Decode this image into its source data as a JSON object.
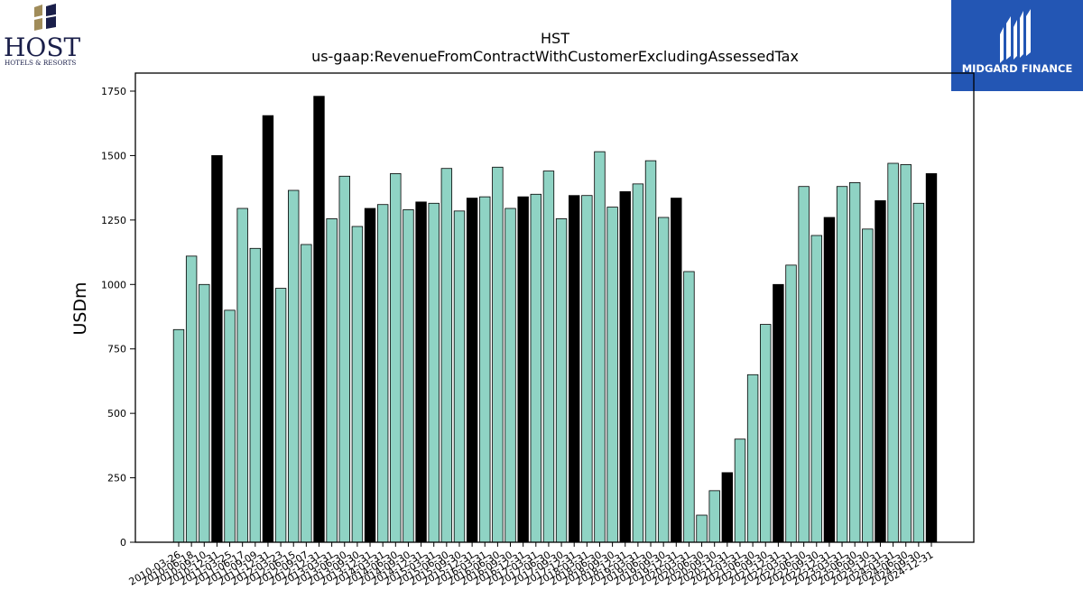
{
  "brand": {
    "host_name": "HOST",
    "host_sub": "HOTELS & RESORTS",
    "midgard_name": "MIDGARD FINANCE",
    "midgard_color": "#2356b4",
    "host_gold": "#a08c5a",
    "host_navy": "#1a1f4a"
  },
  "chart_data": {
    "type": "bar",
    "title": "HST",
    "subtitle": "us-gaap:RevenueFromContractWithCustomerExcludingAssessedTax",
    "ylabel": "USDm",
    "xlabel": "",
    "ylim": [
      0,
      1820
    ],
    "yticks": [
      0,
      250,
      500,
      750,
      1000,
      1250,
      1500,
      1750
    ],
    "grid": false,
    "colors": {
      "quarter": "#8fd3c4",
      "annual": "#000000",
      "edge": "#000000"
    },
    "categories": [
      "2010-03-26",
      "2010-06-18",
      "2010-09-10",
      "2010-12-31",
      "2011-03-25",
      "2011-06-17",
      "2011-09-09",
      "2011-12-31",
      "2012-03-23",
      "2012-06-15",
      "2012-09-07",
      "2012-12-31",
      "2013-03-31",
      "2013-06-30",
      "2013-09-30",
      "2013-12-31",
      "2014-03-31",
      "2014-06-30",
      "2014-09-30",
      "2014-12-31",
      "2015-03-31",
      "2015-06-30",
      "2015-09-30",
      "2015-12-31",
      "2016-03-31",
      "2016-06-30",
      "2016-09-30",
      "2016-12-31",
      "2017-03-31",
      "2017-06-30",
      "2017-09-30",
      "2017-12-31",
      "2018-03-31",
      "2018-06-30",
      "2018-09-30",
      "2018-12-31",
      "2019-03-31",
      "2019-06-30",
      "2019-09-30",
      "2019-12-31",
      "2020-03-31",
      "2020-06-30",
      "2020-09-30",
      "2020-12-31",
      "2021-03-31",
      "2021-06-30",
      "2021-09-30",
      "2021-12-31",
      "2022-03-31",
      "2022-06-30",
      "2022-09-30",
      "2022-12-31",
      "2023-03-31",
      "2023-06-30",
      "2023-09-30",
      "2023-12-31",
      "2024-03-31",
      "2024-06-30",
      "2024-09-30",
      "2024-12-31"
    ],
    "tick_labels": [
      "2010-03-26",
      "2010-06-18",
      "2010-09-10",
      "2010-12-31",
      "2011-03-25",
      "2011-06-17",
      "2011-09-09",
      "2011-12-31",
      "2012-03-23",
      "2012-06-15",
      "2012-09-07",
      "2012-12-31",
      "2013-03-31",
      "2013-06-30",
      "2013-09-30",
      "2013-12-31",
      "2014-03-31",
      "2014-06-30",
      "2014-09-30",
      "2014-12-31",
      "2015-03-31",
      "2015-06-30",
      "2015-09-30",
      "2015-12-31",
      "2016-03-31",
      "2016-06-30",
      "2016-09-30",
      "2016-12-31",
      "2017-03-31",
      "2017-06-30",
      "2017-09-30",
      "2017-12-31",
      "2018-03-31",
      "2018-06-30",
      "2018-09-30",
      "2018-12-31",
      "2019-03-31",
      "2019-06-30",
      "2019-09-30",
      "2019-12-31",
      "2020-03-31",
      "2020-06-30",
      "2020-09-30",
      "2020-12-31",
      "2021-03-31",
      "2021-06-30",
      "2021-09-30",
      "2021-12-31",
      "2022-03-31",
      "2022-06-30",
      "2022-09-30",
      "2022-12-31",
      "2023-03-31",
      "2023-06-30",
      "2023-09-30",
      "2023-12-31",
      "2024-03-31",
      "2024-06-30",
      "2024-09-30",
      "2024-12-31"
    ],
    "values": [
      825,
      1110,
      1000,
      1500,
      900,
      1295,
      1140,
      1655,
      985,
      1365,
      1155,
      1730,
      1255,
      1420,
      1225,
      1295,
      1310,
      1430,
      1290,
      1320,
      1315,
      1450,
      1285,
      1335,
      1340,
      1455,
      1295,
      1340,
      1350,
      1440,
      1255,
      1345,
      1345,
      1515,
      1300,
      1360,
      1390,
      1480,
      1260,
      1335,
      1050,
      105,
      200,
      270,
      400,
      650,
      845,
      1000,
      1075,
      1380,
      1190,
      1260,
      1380,
      1395,
      1215,
      1325,
      1470,
      1465,
      1315,
      1430
    ],
    "annual": [
      false,
      false,
      false,
      true,
      false,
      false,
      false,
      true,
      false,
      false,
      false,
      true,
      false,
      false,
      false,
      true,
      false,
      false,
      false,
      true,
      false,
      false,
      false,
      true,
      false,
      false,
      false,
      true,
      false,
      false,
      false,
      true,
      false,
      false,
      false,
      true,
      false,
      false,
      false,
      true,
      false,
      false,
      false,
      true,
      false,
      false,
      false,
      true,
      false,
      false,
      false,
      true,
      false,
      false,
      false,
      true,
      false,
      false,
      false,
      true
    ]
  }
}
